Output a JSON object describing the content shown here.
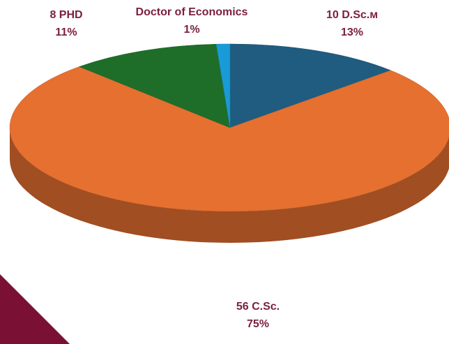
{
  "chart_data": {
    "type": "pie",
    "categories": [
      "10 D.Sc.м",
      "56 C.Sc.",
      "8 PHD",
      "Doctor of Economics"
    ],
    "values": [
      13,
      75,
      11,
      1
    ],
    "value_labels": [
      "13%",
      "75%",
      "11%",
      "1%"
    ],
    "colors": [
      "#1f5c80",
      "#e57030",
      "#1e6e2a",
      "#1a9ad6"
    ]
  }
}
